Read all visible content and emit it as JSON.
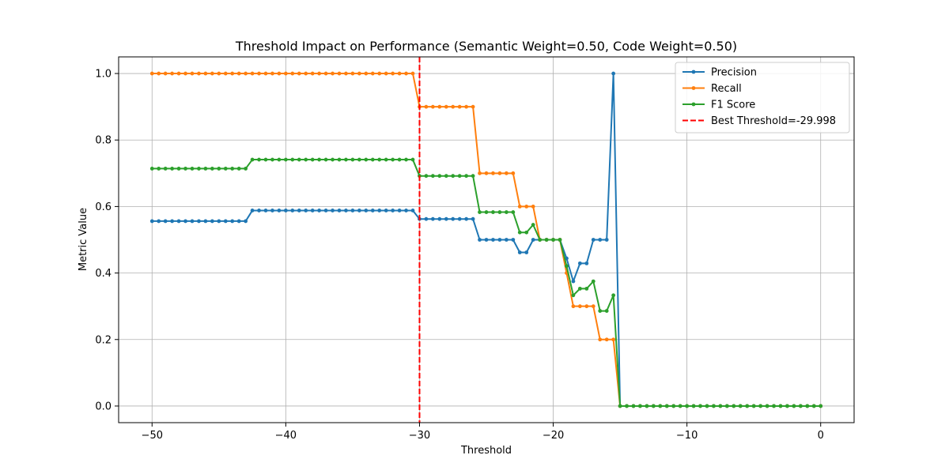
{
  "chart_data": {
    "type": "line",
    "title": "Threshold Impact on Performance (Semantic Weight=0.50, Code Weight=0.50)",
    "xlabel": "Threshold",
    "ylabel": "Metric Value",
    "xlim": [
      -52.5,
      2.5
    ],
    "ylim": [
      -0.05,
      1.05
    ],
    "xticks": [
      -50,
      -40,
      -30,
      -20,
      -10,
      0
    ],
    "xtick_labels": [
      "−50",
      "−40",
      "−30",
      "−20",
      "−10",
      "0"
    ],
    "yticks": [
      0.0,
      0.2,
      0.4,
      0.6,
      0.8,
      1.0
    ],
    "ytick_labels": [
      "0.0",
      "0.2",
      "0.4",
      "0.6",
      "0.8",
      "1.0"
    ],
    "grid": true,
    "legend_position": "top-right",
    "x": [
      -50,
      -49.5,
      -49,
      -48.5,
      -48,
      -47.5,
      -47,
      -46.5,
      -46,
      -45.5,
      -45,
      -44.5,
      -44,
      -43.5,
      -43,
      -42.5,
      -42,
      -41.5,
      -41,
      -40.5,
      -40,
      -39.5,
      -39,
      -38.5,
      -38,
      -37.5,
      -37,
      -36.5,
      -36,
      -35.5,
      -35,
      -34.5,
      -34,
      -33.5,
      -33,
      -32.5,
      -32,
      -31.5,
      -31,
      -30.5,
      -30,
      -29.5,
      -29,
      -28.5,
      -28,
      -27.5,
      -27,
      -26.5,
      -26,
      -25.5,
      -25,
      -24.5,
      -24,
      -23.5,
      -23,
      -22.5,
      -22,
      -21.5,
      -21,
      -20.5,
      -20,
      -19.5,
      -19,
      -18.5,
      -18,
      -17.5,
      -17,
      -16.5,
      -16,
      -15.5,
      -15,
      -14.5,
      -14,
      -13.5,
      -13,
      -12.5,
      -12,
      -11.5,
      -11,
      -10.5,
      -10,
      -9.5,
      -9,
      -8.5,
      -8,
      -7.5,
      -7,
      -6.5,
      -6,
      -5.5,
      -5,
      -4.5,
      -4,
      -3.5,
      -3,
      -2.5,
      -2,
      -1.5,
      -1,
      -0.5,
      0
    ],
    "series": [
      {
        "name": "Precision",
        "color": "#1f77b4",
        "values": [
          0.556,
          0.556,
          0.556,
          0.556,
          0.556,
          0.556,
          0.556,
          0.556,
          0.556,
          0.556,
          0.556,
          0.556,
          0.556,
          0.556,
          0.556,
          0.588,
          0.588,
          0.588,
          0.588,
          0.588,
          0.588,
          0.588,
          0.588,
          0.588,
          0.588,
          0.588,
          0.588,
          0.588,
          0.588,
          0.588,
          0.588,
          0.588,
          0.588,
          0.588,
          0.588,
          0.588,
          0.588,
          0.588,
          0.588,
          0.588,
          0.5625,
          0.5625,
          0.5625,
          0.5625,
          0.5625,
          0.5625,
          0.5625,
          0.5625,
          0.5625,
          0.5,
          0.5,
          0.5,
          0.5,
          0.5,
          0.5,
          0.462,
          0.462,
          0.5,
          0.5,
          0.5,
          0.5,
          0.5,
          0.444,
          0.375,
          0.429,
          0.429,
          0.5,
          0.5,
          0.5,
          1.0,
          0.0,
          0.0,
          0.0,
          0.0,
          0.0,
          0.0,
          0.0,
          0.0,
          0.0,
          0.0,
          0.0,
          0.0,
          0.0,
          0.0,
          0.0,
          0.0,
          0.0,
          0.0,
          0.0,
          0.0,
          0.0,
          0.0,
          0.0,
          0.0,
          0.0,
          0.0,
          0.0,
          0.0,
          0.0,
          0.0,
          0.0
        ]
      },
      {
        "name": "Recall",
        "color": "#ff7f0e",
        "values": [
          1.0,
          1.0,
          1.0,
          1.0,
          1.0,
          1.0,
          1.0,
          1.0,
          1.0,
          1.0,
          1.0,
          1.0,
          1.0,
          1.0,
          1.0,
          1.0,
          1.0,
          1.0,
          1.0,
          1.0,
          1.0,
          1.0,
          1.0,
          1.0,
          1.0,
          1.0,
          1.0,
          1.0,
          1.0,
          1.0,
          1.0,
          1.0,
          1.0,
          1.0,
          1.0,
          1.0,
          1.0,
          1.0,
          1.0,
          1.0,
          0.9,
          0.9,
          0.9,
          0.9,
          0.9,
          0.9,
          0.9,
          0.9,
          0.9,
          0.7,
          0.7,
          0.7,
          0.7,
          0.7,
          0.7,
          0.6,
          0.6,
          0.6,
          0.5,
          0.5,
          0.5,
          0.5,
          0.4,
          0.3,
          0.3,
          0.3,
          0.3,
          0.2,
          0.2,
          0.2,
          0.0,
          0.0,
          0.0,
          0.0,
          0.0,
          0.0,
          0.0,
          0.0,
          0.0,
          0.0,
          0.0,
          0.0,
          0.0,
          0.0,
          0.0,
          0.0,
          0.0,
          0.0,
          0.0,
          0.0,
          0.0,
          0.0,
          0.0,
          0.0,
          0.0,
          0.0,
          0.0,
          0.0,
          0.0,
          0.0,
          0.0
        ]
      },
      {
        "name": "F1 Score",
        "color": "#2ca02c",
        "values": [
          0.714,
          0.714,
          0.714,
          0.714,
          0.714,
          0.714,
          0.714,
          0.714,
          0.714,
          0.714,
          0.714,
          0.714,
          0.714,
          0.714,
          0.714,
          0.741,
          0.741,
          0.741,
          0.741,
          0.741,
          0.741,
          0.741,
          0.741,
          0.741,
          0.741,
          0.741,
          0.741,
          0.741,
          0.741,
          0.741,
          0.741,
          0.741,
          0.741,
          0.741,
          0.741,
          0.741,
          0.741,
          0.741,
          0.741,
          0.741,
          0.692,
          0.692,
          0.692,
          0.692,
          0.692,
          0.692,
          0.692,
          0.692,
          0.692,
          0.583,
          0.583,
          0.583,
          0.583,
          0.583,
          0.583,
          0.522,
          0.522,
          0.545,
          0.5,
          0.5,
          0.5,
          0.5,
          0.421,
          0.333,
          0.353,
          0.353,
          0.375,
          0.286,
          0.286,
          0.333,
          0.0,
          0.0,
          0.0,
          0.0,
          0.0,
          0.0,
          0.0,
          0.0,
          0.0,
          0.0,
          0.0,
          0.0,
          0.0,
          0.0,
          0.0,
          0.0,
          0.0,
          0.0,
          0.0,
          0.0,
          0.0,
          0.0,
          0.0,
          0.0,
          0.0,
          0.0,
          0.0,
          0.0,
          0.0,
          0.0,
          0.0
        ]
      }
    ],
    "vline": {
      "name": "Best Threshold=-29.998",
      "x": -29.998,
      "color": "#ff0000",
      "style": "dashed"
    },
    "legend": [
      "Precision",
      "Recall",
      "F1 Score",
      "Best Threshold=-29.998"
    ]
  }
}
